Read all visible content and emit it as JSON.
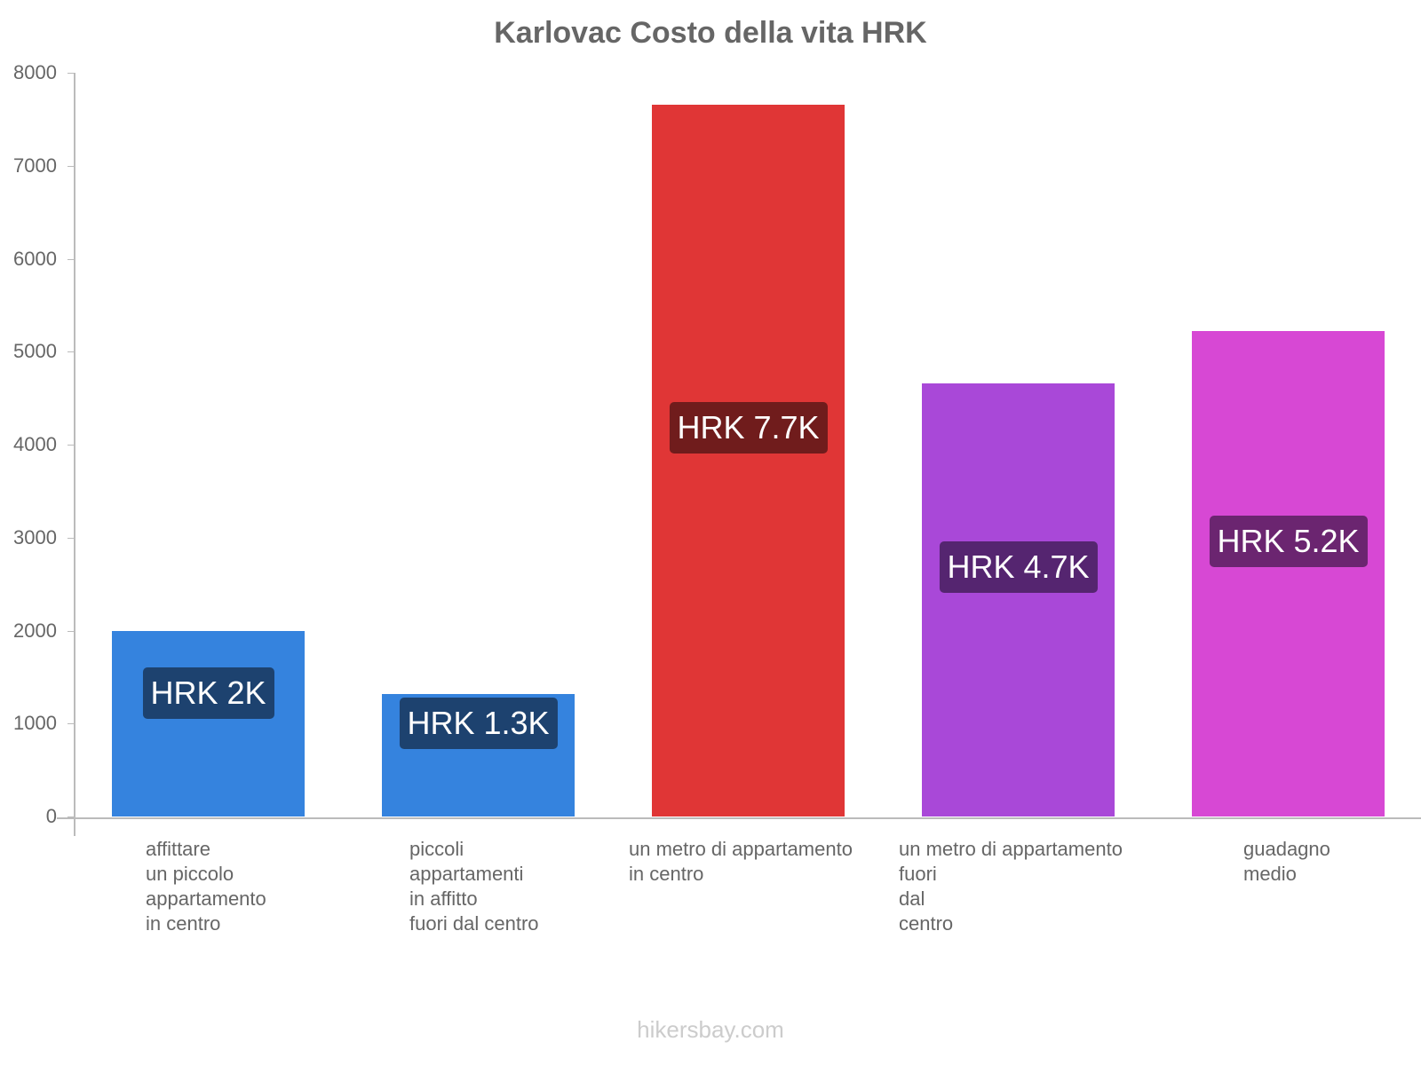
{
  "chart_data": {
    "type": "bar",
    "title": "Karlovac Costo della vita HRK",
    "xlabel": "",
    "ylabel": "",
    "ylim": [
      0,
      8000
    ],
    "yticks": [
      0,
      1000,
      2000,
      3000,
      4000,
      5000,
      6000,
      7000,
      8000
    ],
    "grid": false,
    "legend": null,
    "categories": [
      "affittare un piccolo appartamento in centro",
      "piccoli appartamenti in affitto fuori dal centro",
      "un metro di appartamento in centro",
      "un metro di appartamento fuori dal centro",
      "guadagno medio"
    ],
    "values": [
      1995,
      1320,
      7658,
      4655,
      5222
    ],
    "data_labels": [
      "HRK 2K",
      "HRK 1.3K",
      "HRK 7.7K",
      "HRK 4.7K",
      "HRK 5.2K"
    ],
    "colors": [
      "#3583de",
      "#3583de",
      "#e03636",
      "#a948d8",
      "#d748d4"
    ],
    "label_bg_colors": [
      "#1d426f",
      "#1d426f",
      "#701c1c",
      "#552570",
      "#6b2570"
    ]
  },
  "page": {
    "title": "Karlovac Costo della vita HRK",
    "footer": "hikersbay.com"
  },
  "axis": {
    "yticks": [
      "0",
      "1000",
      "2000",
      "3000",
      "4000",
      "5000",
      "6000",
      "7000",
      "8000"
    ]
  },
  "xlabels": [
    "affittare\nun piccolo\nappartamento\nin centro",
    "piccoli\nappartamenti\nin affitto\nfuori dal centro",
    "un metro di appartamento\nin centro",
    "un metro di appartamento\nfuori\ndal\ncentro",
    "guadagno\nmedio"
  ]
}
